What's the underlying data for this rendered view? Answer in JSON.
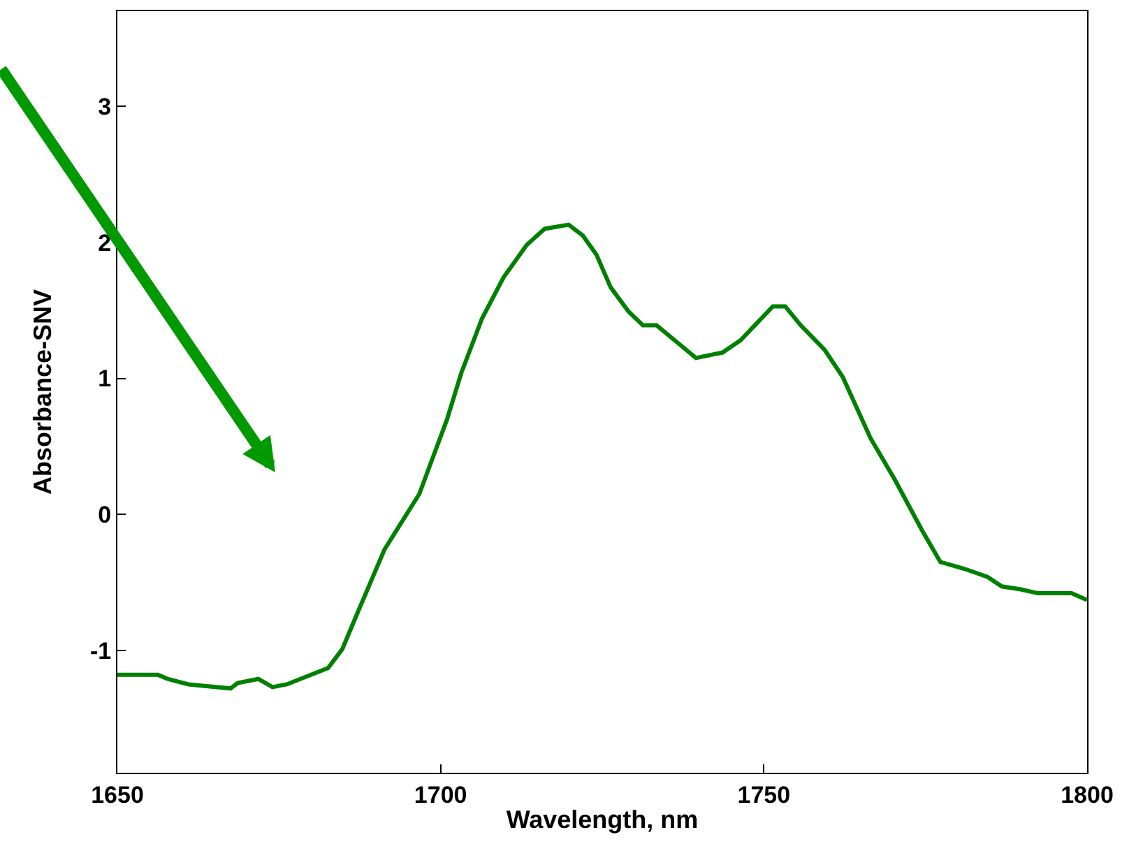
{
  "chart_data": {
    "type": "line",
    "xlabel": "Wavelength, nm",
    "ylabel": "Absorbance-SNV",
    "xlim": [
      1650,
      1800
    ],
    "xticks": [
      1650,
      1700,
      1750,
      1800
    ],
    "ylim": [
      -1.9,
      3.7
    ],
    "yticks": [
      -1,
      0,
      1,
      2,
      3
    ],
    "marker": "none",
    "line_style": "solid",
    "series": [
      {
        "color": "#008000",
        "x": [
          1650.0,
          1656.3,
          1657.8,
          1661.0,
          1667.5,
          1668.6,
          1671.8,
          1674.0,
          1676.2,
          1679.4,
          1682.6,
          1684.8,
          1687.0,
          1691.3,
          1696.7,
          1701.0,
          1703.2,
          1706.4,
          1709.7,
          1713.3,
          1716.1,
          1719.8,
          1722.0,
          1724.1,
          1726.3,
          1729.1,
          1731.3,
          1733.4,
          1736.2,
          1739.5,
          1743.6,
          1746.4,
          1748.6,
          1751.4,
          1753.3,
          1755.7,
          1759.4,
          1762.2,
          1766.5,
          1770.2,
          1774.5,
          1777.3,
          1781.0,
          1784.6,
          1786.8,
          1789.6,
          1792.4,
          1797.6,
          1800.0
        ],
        "values": [
          -1.18,
          -1.18,
          -1.21,
          -1.25,
          -1.28,
          -1.24,
          -1.21,
          -1.27,
          -1.25,
          -1.19,
          -1.13,
          -0.99,
          -0.74,
          -0.26,
          0.15,
          0.7,
          1.04,
          1.44,
          1.74,
          1.98,
          2.1,
          2.13,
          2.05,
          1.91,
          1.67,
          1.49,
          1.39,
          1.39,
          1.28,
          1.15,
          1.19,
          1.28,
          1.39,
          1.53,
          1.53,
          1.39,
          1.21,
          1.01,
          0.56,
          0.26,
          -0.12,
          -0.35,
          -0.4,
          -0.46,
          -0.53,
          -0.55,
          -0.58,
          -0.58,
          -0.63
        ]
      }
    ]
  }
}
